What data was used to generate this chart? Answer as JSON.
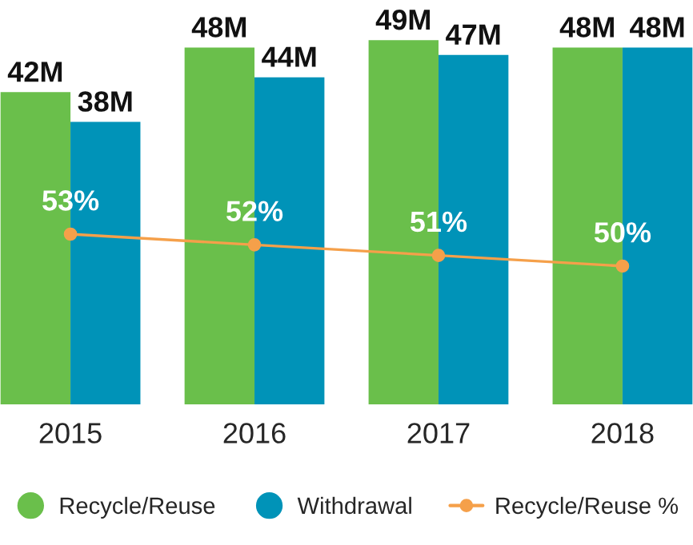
{
  "chart_data": {
    "type": "bar",
    "categories": [
      "2015",
      "2016",
      "2017",
      "2018"
    ],
    "tick_labels": "x",
    "grid": false,
    "legend": "bottom",
    "series": [
      {
        "name": "Recycle/Reuse",
        "color": "#6abf4b",
        "values": [
          42,
          48,
          49,
          48
        ],
        "value_labels": [
          "42M",
          "48M",
          "49M",
          "48M"
        ]
      },
      {
        "name": "Withdrawal",
        "color": "#0093b8",
        "values": [
          38,
          44,
          47,
          48
        ],
        "value_labels": [
          "38M",
          "44M",
          "47M",
          "48M"
        ]
      },
      {
        "name": "Recycle/Reuse %",
        "type": "line",
        "axis": "y2",
        "marker": "circle",
        "line_style": "solid",
        "color": "#f5a04a",
        "values": [
          53,
          52,
          51,
          50
        ],
        "value_labels": [
          "53%",
          "52%",
          "51%",
          "50%"
        ]
      }
    ]
  }
}
